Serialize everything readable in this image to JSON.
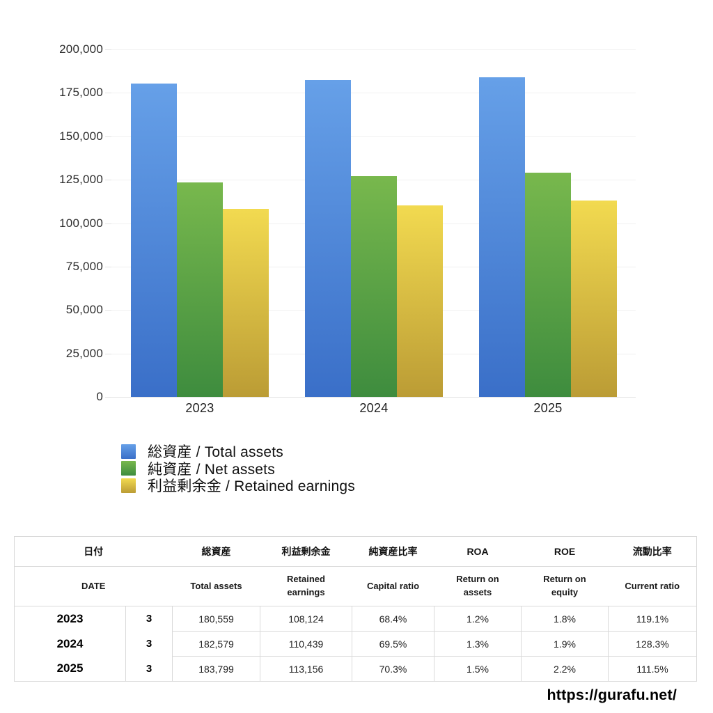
{
  "page": {
    "background": "#ffffff",
    "url_watermark": "https://gurafu.net/"
  },
  "chart_data": {
    "type": "bar",
    "title": "",
    "categories": [
      "2023",
      "2024",
      "2025"
    ],
    "series": [
      {
        "name": "総資産 / Total assets",
        "color_top": "#66a0e8",
        "color_bottom": "#3a6fc8",
        "values": [
          180559,
          182579,
          183799
        ]
      },
      {
        "name": "純資産 / Net assets",
        "color_top": "#78b84d",
        "color_bottom": "#3e8c3e",
        "values": [
          123500,
          126900,
          129200
        ]
      },
      {
        "name": "利益剰余金 / Retained earnings",
        "color_top": "#f2da50",
        "color_bottom": "#bb9c35",
        "values": [
          108124,
          110439,
          113156
        ]
      }
    ],
    "xlabel": "",
    "ylabel": "",
    "ylim": [
      0,
      200000
    ],
    "ytick_interval": 25000,
    "ytick_labels": [
      "0",
      "25,000",
      "50,000",
      "75,000",
      "100,000",
      "125,000",
      "150,000",
      "175,000",
      "200,000"
    ],
    "grid": true,
    "legend_position": "bottom-left"
  },
  "table": {
    "header_jp": [
      "日付",
      "総資産",
      "利益剰余金",
      "純資産比率",
      "ROA",
      "ROE",
      "流動比率"
    ],
    "header_en": [
      "DATE",
      "Total assets",
      "Retained\nearnings",
      "Capital ratio",
      "Return on\nassets",
      "Return on\nequity",
      "Current ratio"
    ],
    "rows": [
      [
        "2023",
        "3",
        "180,559",
        "108,124",
        "68.4%",
        "1.2%",
        "1.8%",
        "119.1%"
      ],
      [
        "2024",
        "3",
        "182,579",
        "110,439",
        "69.5%",
        "1.3%",
        "1.9%",
        "128.3%"
      ],
      [
        "2025",
        "3",
        "183,799",
        "113,156",
        "70.3%",
        "1.5%",
        "2.2%",
        "111.5%"
      ]
    ]
  }
}
